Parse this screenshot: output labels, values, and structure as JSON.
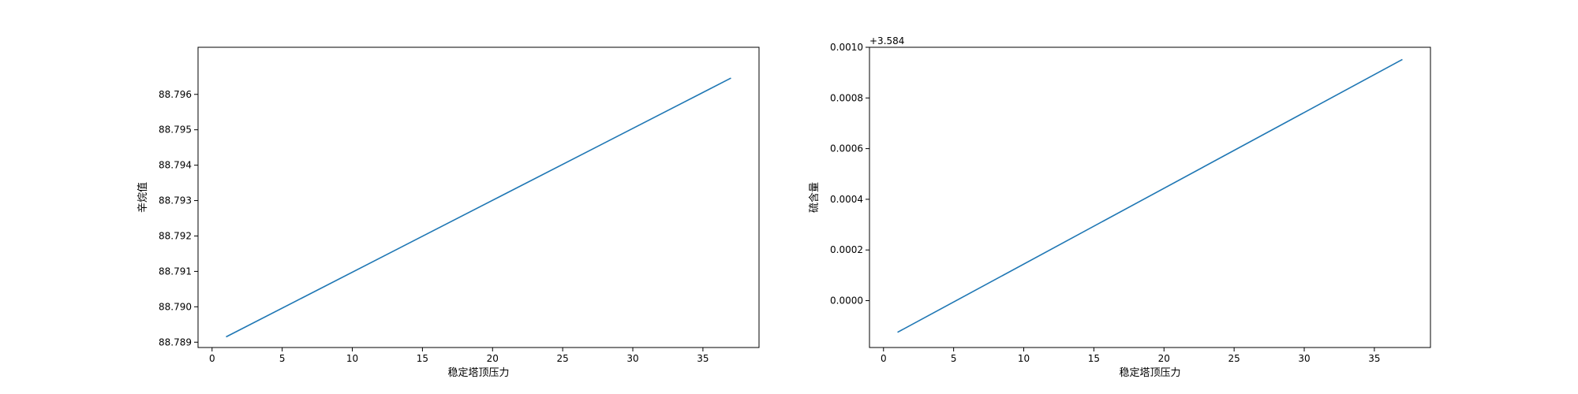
{
  "chart_data": [
    {
      "type": "line",
      "xlabel": "稳定塔顶压力",
      "ylabel": "辛烷值",
      "offset_label": "",
      "xlim": [
        -1,
        39
      ],
      "ylim": [
        88.78885,
        88.79733
      ],
      "xticks": [
        0,
        5,
        10,
        15,
        20,
        25,
        30,
        35
      ],
      "yticks": [
        88.789,
        88.79,
        88.791,
        88.792,
        88.793,
        88.794,
        88.795,
        88.796
      ],
      "ytick_labels": [
        "88.789",
        "88.790",
        "88.791",
        "88.792",
        "88.793",
        "88.794",
        "88.795",
        "88.796"
      ],
      "x": [
        1,
        37
      ],
      "y": [
        88.78915,
        88.79646
      ],
      "color": "#1f77b4",
      "grid": false
    },
    {
      "type": "line",
      "xlabel": "稳定塔顶压力",
      "ylabel": "硫含量",
      "offset_label": "+3.584",
      "xlim": [
        -1,
        39
      ],
      "ylim": [
        -0.000185,
        0.001
      ],
      "xticks": [
        0,
        5,
        10,
        15,
        20,
        25,
        30,
        35
      ],
      "yticks": [
        0.0,
        0.0002,
        0.0004,
        0.0006,
        0.0008,
        0.001
      ],
      "ytick_labels": [
        "0.0000",
        "0.0002",
        "0.0004",
        "0.0006",
        "0.0008",
        "0.0010"
      ],
      "x": [
        1,
        37
      ],
      "y": [
        -0.000125,
        0.000952
      ],
      "color": "#1f77b4",
      "grid": false
    }
  ]
}
